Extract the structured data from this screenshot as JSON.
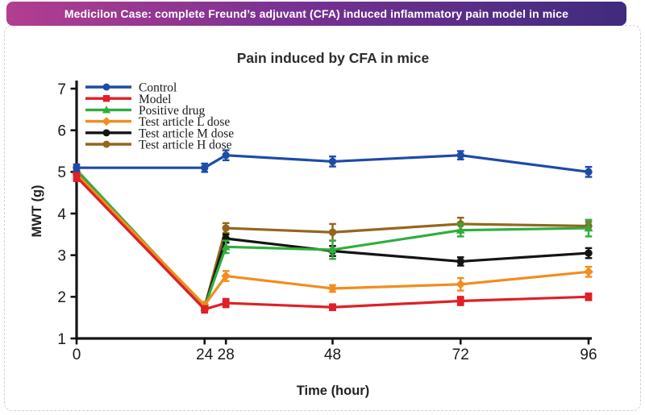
{
  "banner": {
    "text": "Medicilon Case: complete Freund’s adjuvant (CFA) induced inflammatory pain model in mice",
    "gradient": [
      "#b23e90",
      "#7a3193",
      "#3f2b7e"
    ]
  },
  "chart_data": {
    "type": "line",
    "title": "Pain induced by CFA in mice",
    "xlabel": "Time (hour)",
    "ylabel": "MWT (g)",
    "x": [
      0,
      24,
      28,
      48,
      72,
      96
    ],
    "xticks": [
      0,
      24,
      28,
      48,
      72,
      96
    ],
    "yticks": [
      1,
      2,
      3,
      4,
      5,
      6,
      7
    ],
    "xlim": [
      0,
      96
    ],
    "ylim": [
      1,
      7
    ],
    "grid": false,
    "legend_position": "top-left",
    "error_bars": true,
    "axis_color": "#141414",
    "series": [
      {
        "name": "Control",
        "color": "#1d4ba6",
        "marker": "circle",
        "values": [
          5.1,
          5.1,
          5.4,
          5.25,
          5.4,
          5.0
        ],
        "errors": [
          0.08,
          0.1,
          0.12,
          0.12,
          0.1,
          0.12
        ]
      },
      {
        "name": "Model",
        "color": "#e01f26",
        "marker": "square",
        "values": [
          4.88,
          1.7,
          1.85,
          1.75,
          1.9,
          2.0
        ],
        "errors": [
          0.1,
          0.08,
          0.1,
          0.07,
          0.1,
          0.08
        ]
      },
      {
        "name": "Positive drug",
        "color": "#2fae3c",
        "marker": "triangle",
        "values": [
          5.05,
          1.75,
          3.2,
          3.13,
          3.6,
          3.65
        ],
        "errors": [
          0.08,
          0.08,
          0.15,
          0.22,
          0.15,
          0.2
        ]
      },
      {
        "name": "Test article L dose",
        "color": "#f28d1e",
        "marker": "diamond",
        "values": [
          4.95,
          1.8,
          2.5,
          2.2,
          2.3,
          2.6
        ],
        "errors": [
          0.08,
          0.08,
          0.12,
          0.08,
          0.15,
          0.12
        ]
      },
      {
        "name": "Test article M dose",
        "color": "#141414",
        "marker": "circle",
        "values": [
          5.0,
          1.75,
          3.4,
          3.1,
          2.85,
          3.05
        ],
        "errors": [
          0.08,
          0.08,
          0.1,
          0.12,
          0.1,
          0.12
        ]
      },
      {
        "name": "Test article H dose",
        "color": "#93661e",
        "marker": "circle",
        "values": [
          5.0,
          1.75,
          3.65,
          3.55,
          3.75,
          3.7
        ],
        "errors": [
          0.08,
          0.08,
          0.12,
          0.2,
          0.15,
          0.1
        ]
      }
    ],
    "draw_order": [
      5,
      4,
      2,
      3,
      1,
      0
    ]
  }
}
